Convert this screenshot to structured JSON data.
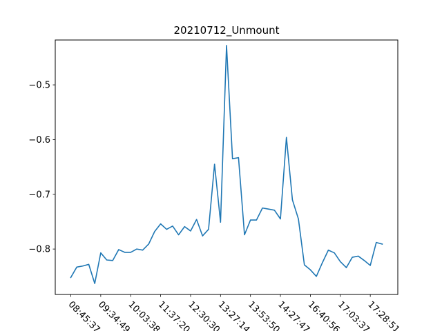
{
  "chart_data": {
    "type": "line",
    "title": "20210712_Unmount",
    "xlabel": "",
    "ylabel": "",
    "x_tick_labels": [
      "08:45:37",
      "09:34:49",
      "10:03:38",
      "11:37:20",
      "12:30:30",
      "13:27:14",
      "13:53:50",
      "14:27:47",
      "16:40:56",
      "17:03:37",
      "17:28:51"
    ],
    "y_ticks": [
      -0.8,
      -0.7,
      -0.6,
      -0.5
    ],
    "y_tick_labels": [
      "−0.8",
      "−0.7",
      "−0.6",
      "−0.5"
    ],
    "ylim": [
      -0.883,
      -0.418
    ],
    "grid": false,
    "series": [
      {
        "color": "#1f77b4",
        "values": [
          -0.852,
          -0.833,
          -0.831,
          -0.828,
          -0.863,
          -0.807,
          -0.82,
          -0.821,
          -0.801,
          -0.806,
          -0.806,
          -0.8,
          -0.802,
          -0.791,
          -0.768,
          -0.754,
          -0.764,
          -0.758,
          -0.774,
          -0.759,
          -0.767,
          -0.746,
          -0.776,
          -0.764,
          -0.645,
          -0.751,
          -0.428,
          -0.635,
          -0.633,
          -0.774,
          -0.747,
          -0.747,
          -0.725,
          -0.727,
          -0.729,
          -0.745,
          -0.596,
          -0.71,
          -0.745,
          -0.829,
          -0.838,
          -0.85,
          -0.825,
          -0.802,
          -0.807,
          -0.823,
          -0.834,
          -0.815,
          -0.813,
          -0.821,
          -0.83,
          -0.788,
          -0.791
        ]
      }
    ]
  }
}
